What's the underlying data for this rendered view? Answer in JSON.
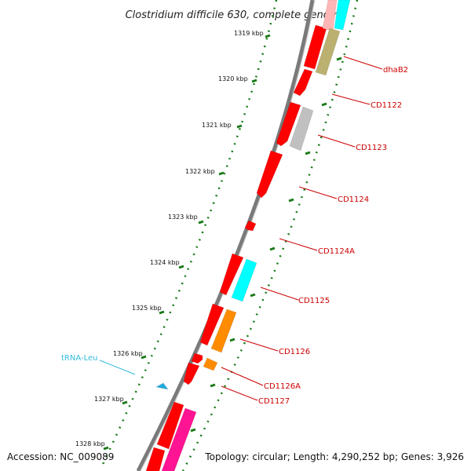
{
  "title": "Clostridium difficile 630, complete genome",
  "footer": {
    "accession": "Accession: NC_009089",
    "topology": "Topology: circular; Length: 4,290,252 bp; Genes: 3,926"
  },
  "colors": {
    "backbone": "#7a7a7a",
    "scale_dots": "#1a7a1a",
    "label_line_red": "#cc0000",
    "label_line_cyan": "#33bbdd"
  },
  "ticks": [
    "1319 kbp",
    "1320 kbp",
    "1321 kbp",
    "1322 kbp",
    "1323 kbp",
    "1324 kbp",
    "1325 kbp",
    "1326 kbp",
    "1327 kbp",
    "1328 kbp"
  ],
  "gene_labels": [
    {
      "text": "dhaB2",
      "color": "#cc0000"
    },
    {
      "text": "CD1122",
      "color": "#cc0000"
    },
    {
      "text": "CD1123",
      "color": "#cc0000"
    },
    {
      "text": "CD1124",
      "color": "#cc0000"
    },
    {
      "text": "CD1124A",
      "color": "#cc0000"
    },
    {
      "text": "CD1125",
      "color": "#cc0000"
    },
    {
      "text": "CD1126",
      "color": "#cc0000"
    },
    {
      "text": "CD1126A",
      "color": "#cc0000"
    },
    {
      "text": "CD1127",
      "color": "#cc0000"
    },
    {
      "text": "tRNA-Leu",
      "color": "#33bbdd"
    }
  ],
  "features": [
    {
      "color": "#ff0000"
    },
    {
      "color": "#ff0000"
    },
    {
      "color": "#ff0000"
    },
    {
      "color": "#ff0000"
    },
    {
      "color": "#ff0000"
    },
    {
      "color": "#ff0000"
    },
    {
      "color": "#ff0000"
    },
    {
      "color": "#ff0000"
    },
    {
      "color": "#ff0000"
    },
    {
      "color": "#ff0000"
    },
    {
      "color": "#ff0000"
    },
    {
      "color": "#ffb6b6"
    },
    {
      "color": "#00ffff"
    },
    {
      "color": "#bbb070"
    },
    {
      "color": "#c0c0c0"
    },
    {
      "color": "#00ffff"
    },
    {
      "color": "#ff8c00"
    },
    {
      "color": "#ff8c00"
    },
    {
      "color": "#ff1493"
    },
    {
      "color": "#22aadd"
    }
  ]
}
